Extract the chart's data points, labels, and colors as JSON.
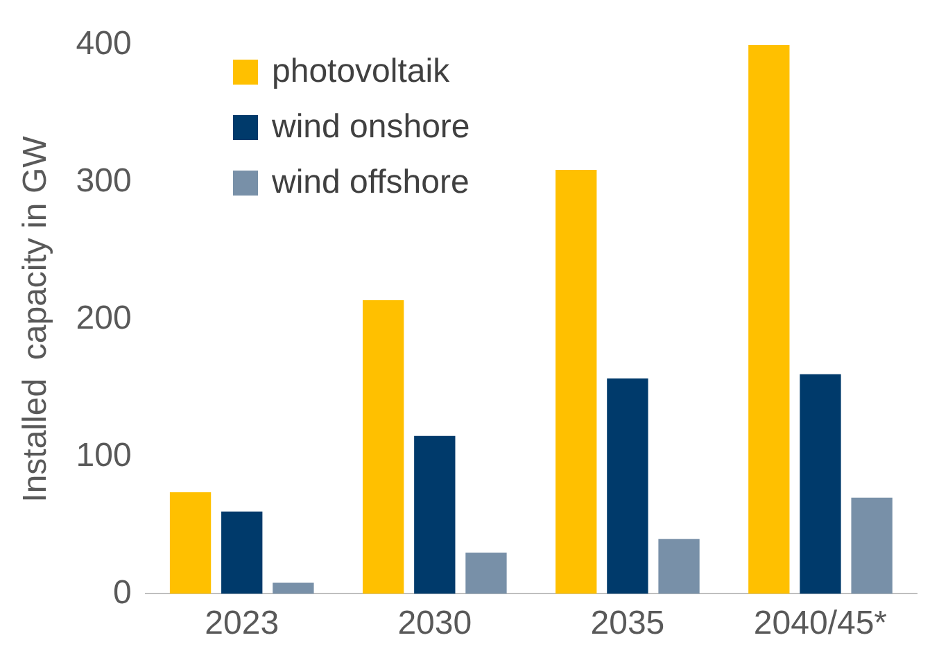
{
  "chart_data": {
    "type": "bar",
    "ylabel": "Installed  capacity in GW",
    "categories": [
      "2023",
      "2030",
      "2035",
      "2040/45*"
    ],
    "series": [
      {
        "name": "photovoltaik",
        "color": "#ffc000",
        "values": [
          74,
          214,
          309,
          400
        ]
      },
      {
        "name": "wind onshore",
        "color": "#003a6b",
        "values": [
          60,
          115,
          157,
          160
        ]
      },
      {
        "name": "wind offshore",
        "color": "#7890a8",
        "values": [
          8,
          30,
          40,
          70
        ]
      }
    ],
    "ylim": [
      0,
      400
    ],
    "yticks": [
      0,
      100,
      200,
      300,
      400
    ],
    "grid": false,
    "legend": "top left"
  }
}
